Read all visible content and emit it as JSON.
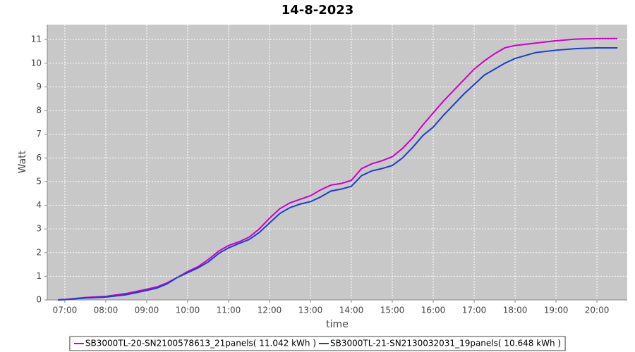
{
  "chart_data": {
    "type": "line",
    "title": "14-8-2023",
    "x_label": "time",
    "y_label": "Watt",
    "x": [
      6.83,
      7.0,
      7.5,
      8.0,
      8.5,
      9.0,
      9.25,
      9.5,
      9.75,
      10.0,
      10.25,
      10.5,
      10.75,
      11.0,
      11.25,
      11.5,
      11.75,
      12.0,
      12.25,
      12.5,
      12.75,
      13.0,
      13.25,
      13.5,
      13.75,
      14.0,
      14.25,
      14.5,
      14.75,
      15.0,
      15.25,
      15.5,
      15.75,
      16.0,
      16.25,
      16.5,
      16.75,
      17.0,
      17.25,
      17.5,
      17.75,
      18.0,
      18.5,
      19.0,
      19.5,
      20.0,
      20.5
    ],
    "series": [
      {
        "name": "SB3000TL-20-SN2100578613_21panels( 11.042 kWh )",
        "color": "#cc00cc",
        "values": [
          0,
          0.02,
          0.1,
          0.15,
          0.27,
          0.45,
          0.55,
          0.72,
          0.95,
          1.2,
          1.4,
          1.7,
          2.05,
          2.3,
          2.45,
          2.65,
          3.0,
          3.45,
          3.85,
          4.1,
          4.25,
          4.4,
          4.65,
          4.85,
          4.92,
          5.05,
          5.55,
          5.75,
          5.88,
          6.05,
          6.4,
          6.85,
          7.4,
          7.9,
          8.4,
          8.85,
          9.3,
          9.75,
          10.1,
          10.4,
          10.65,
          10.75,
          10.85,
          10.95,
          11.02,
          11.04,
          11.042
        ]
      },
      {
        "name": "SB3000TL-21-SN2130032031_19panels( 10.648 kWh )",
        "color": "#1a3fcc",
        "values": [
          0,
          0.01,
          0.08,
          0.12,
          0.22,
          0.4,
          0.5,
          0.68,
          0.95,
          1.15,
          1.35,
          1.6,
          1.95,
          2.2,
          2.38,
          2.55,
          2.85,
          3.25,
          3.65,
          3.9,
          4.05,
          4.15,
          4.35,
          4.6,
          4.68,
          4.8,
          5.25,
          5.45,
          5.55,
          5.68,
          6.0,
          6.45,
          6.95,
          7.3,
          7.8,
          8.25,
          8.7,
          9.1,
          9.5,
          9.75,
          10.0,
          10.2,
          10.45,
          10.55,
          10.62,
          10.65,
          10.648
        ]
      }
    ],
    "xlim": [
      6.57,
      20.74
    ],
    "xticks": [
      {
        "value": 7,
        "label": "07:00"
      },
      {
        "value": 8,
        "label": "08:00"
      },
      {
        "value": 9,
        "label": "09:00"
      },
      {
        "value": 10,
        "label": "10:00"
      },
      {
        "value": 11,
        "label": "11:00"
      },
      {
        "value": 12,
        "label": "12:00"
      },
      {
        "value": 13,
        "label": "13:00"
      },
      {
        "value": 14,
        "label": "14:00"
      },
      {
        "value": 15,
        "label": "15:00"
      },
      {
        "value": 16,
        "label": "16:00"
      },
      {
        "value": 17,
        "label": "17:00"
      },
      {
        "value": 18,
        "label": "18:00"
      },
      {
        "value": 19,
        "label": "19:00"
      },
      {
        "value": 20,
        "label": "20:00"
      }
    ],
    "ylim": [
      0,
      11.63
    ],
    "yticks": [
      0,
      1,
      2,
      3,
      4,
      5,
      6,
      7,
      8,
      9,
      10,
      11
    ],
    "grid": true,
    "legend": "bottom"
  }
}
